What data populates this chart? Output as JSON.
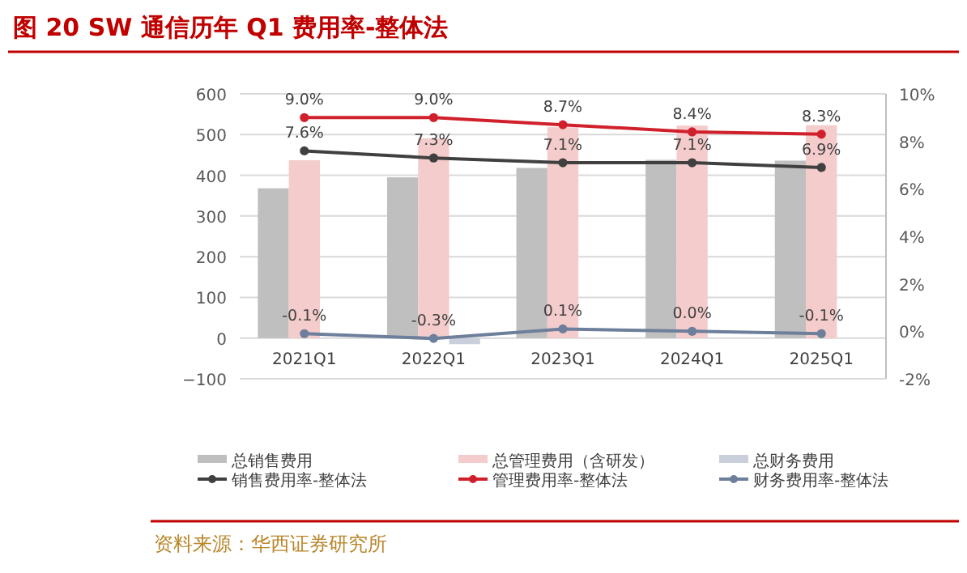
{
  "chart_data": {
    "type": "bar",
    "title": "图 20  SW 通信历年 Q1 费用率-整体法",
    "annotations": [
      "资料来源：华西证券研究所"
    ],
    "categories": [
      "2021Q1",
      "2022Q1",
      "2023Q1",
      "2024Q1",
      "2025Q1"
    ],
    "ylim": [
      -100,
      600
    ],
    "yticks": [
      {
        "value": -100,
        "label": "−100"
      },
      0,
      100,
      200,
      300,
      400,
      500,
      600
    ],
    "y2lim": [
      -2,
      10
    ],
    "y2ticks": [
      {
        "value": -2,
        "label": "-2%"
      },
      {
        "value": 0,
        "label": "0%"
      },
      {
        "value": 2,
        "label": "2%"
      },
      {
        "value": 4,
        "label": "4%"
      },
      {
        "value": 6,
        "label": "6%"
      },
      {
        "value": 8,
        "label": "8%"
      },
      {
        "value": 10,
        "label": "10%"
      }
    ],
    "grid": "y",
    "legend": "bottom",
    "marker": "circle",
    "series": [
      {
        "name": "总销售费用",
        "color": "#bfbfbf",
        "values": [
          368,
          395,
          418,
          438,
          436
        ]
      },
      {
        "name": "总管理费用（含研发）",
        "color": "#f4cccc",
        "values": [
          437,
          491,
          518,
          522,
          523
        ]
      },
      {
        "name": "总财务费用",
        "color": "#c9d0dc",
        "values": [
          null,
          -15,
          null,
          null,
          null
        ]
      },
      {
        "name": "销售费用率-整体法",
        "type": "line",
        "axis": "y2",
        "color": "#404040",
        "values": [
          7.6,
          7.3,
          7.1,
          7.1,
          6.9
        ],
        "value_labels": [
          "7.6%",
          "7.3%",
          "7.1%",
          "7.1%",
          "6.9%"
        ]
      },
      {
        "name": "管理费用率-整体法",
        "type": "line",
        "axis": "y2",
        "color": "#d0202b",
        "values": [
          9.0,
          9.0,
          8.7,
          8.4,
          8.3
        ],
        "value_labels": [
          "9.0%",
          "9.0%",
          "8.7%",
          "8.4%",
          "8.3%"
        ]
      },
      {
        "name": "财务费用率-整体法",
        "type": "line",
        "axis": "y2",
        "color": "#6d7f9b",
        "values": [
          -0.1,
          -0.3,
          0.1,
          0.0,
          -0.1
        ],
        "value_labels": [
          "-0.1%",
          "-0.3%",
          "0.1%",
          "0.0%",
          "-0.1%"
        ]
      }
    ]
  }
}
